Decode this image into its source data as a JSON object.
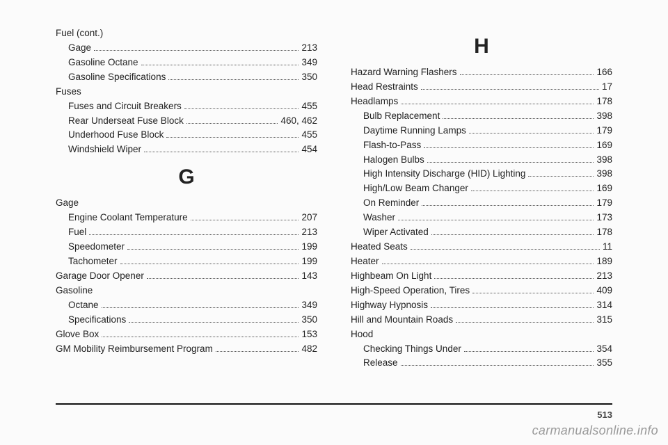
{
  "left": {
    "groups": [
      {
        "heading": null,
        "items": [
          {
            "label": "Fuel (cont.)",
            "page": "",
            "sub": false,
            "nodots": true
          },
          {
            "label": "Gage",
            "page": "213",
            "sub": true
          },
          {
            "label": "Gasoline Octane",
            "page": "349",
            "sub": true
          },
          {
            "label": "Gasoline Specifications",
            "page": "350",
            "sub": true
          },
          {
            "label": "Fuses",
            "page": "",
            "sub": false,
            "nodots": true
          },
          {
            "label": "Fuses and Circuit Breakers",
            "page": "455",
            "sub": true
          },
          {
            "label": "Rear Underseat Fuse Block",
            "page": "460,   462",
            "sub": true
          },
          {
            "label": "Underhood Fuse Block",
            "page": "455",
            "sub": true
          },
          {
            "label": "Windshield Wiper",
            "page": "454",
            "sub": true
          }
        ]
      },
      {
        "heading": "G",
        "items": [
          {
            "label": "Gage",
            "page": "",
            "sub": false,
            "nodots": true
          },
          {
            "label": "Engine Coolant Temperature",
            "page": "207",
            "sub": true
          },
          {
            "label": "Fuel",
            "page": "213",
            "sub": true
          },
          {
            "label": "Speedometer",
            "page": "199",
            "sub": true
          },
          {
            "label": "Tachometer",
            "page": "199",
            "sub": true
          },
          {
            "label": "Garage Door Opener",
            "page": "143",
            "sub": false
          },
          {
            "label": "Gasoline",
            "page": "",
            "sub": false,
            "nodots": true
          },
          {
            "label": "Octane",
            "page": "349",
            "sub": true
          },
          {
            "label": "Specifications",
            "page": "350",
            "sub": true
          },
          {
            "label": "Glove Box",
            "page": "153",
            "sub": false
          },
          {
            "label": "GM Mobility Reimbursement Program",
            "page": "482",
            "sub": false
          }
        ]
      }
    ]
  },
  "right": {
    "groups": [
      {
        "heading": "H",
        "items": [
          {
            "label": "Hazard Warning Flashers",
            "page": "166",
            "sub": false
          },
          {
            "label": "Head Restraints",
            "page": "17",
            "sub": false
          },
          {
            "label": "Headlamps",
            "page": "178",
            "sub": false
          },
          {
            "label": "Bulb Replacement",
            "page": "398",
            "sub": true
          },
          {
            "label": "Daytime Running Lamps",
            "page": "179",
            "sub": true
          },
          {
            "label": "Flash-to-Pass",
            "page": "169",
            "sub": true
          },
          {
            "label": "Halogen Bulbs",
            "page": "398",
            "sub": true
          },
          {
            "label": "High Intensity Discharge (HID) Lighting",
            "page": "398",
            "sub": true
          },
          {
            "label": "High/Low Beam Changer",
            "page": "169",
            "sub": true
          },
          {
            "label": "On Reminder",
            "page": "179",
            "sub": true
          },
          {
            "label": "Washer",
            "page": "173",
            "sub": true
          },
          {
            "label": "Wiper Activated",
            "page": "178",
            "sub": true
          },
          {
            "label": "Heated Seats",
            "page": "11",
            "sub": false
          },
          {
            "label": "Heater",
            "page": "189",
            "sub": false
          },
          {
            "label": "Highbeam On Light",
            "page": "213",
            "sub": false
          },
          {
            "label": "High-Speed Operation, Tires",
            "page": "409",
            "sub": false
          },
          {
            "label": "Highway Hypnosis",
            "page": "314",
            "sub": false
          },
          {
            "label": "Hill and Mountain Roads",
            "page": "315",
            "sub": false
          },
          {
            "label": "Hood",
            "page": "",
            "sub": false,
            "nodots": true
          },
          {
            "label": "Checking Things Under",
            "page": "354",
            "sub": true
          },
          {
            "label": "Release",
            "page": "355",
            "sub": true
          }
        ]
      }
    ]
  },
  "pageNumber": "513",
  "watermark": "carmanualsonline.info"
}
